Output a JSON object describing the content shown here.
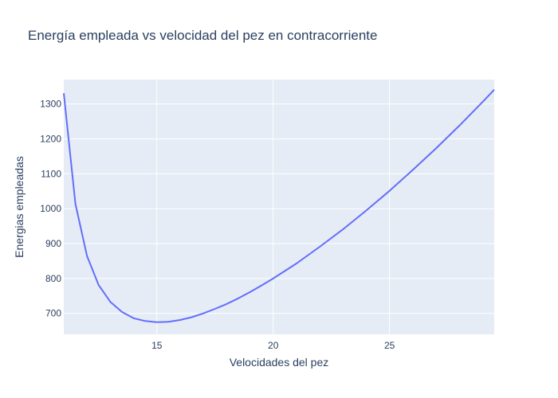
{
  "chart_data": {
    "type": "line",
    "title": "Energía empleada vs velocidad del pez en contracorriente",
    "xlabel": "Velocidades del pez",
    "ylabel": "Energias empleadas",
    "xlim": [
      11,
      29.5
    ],
    "ylim": [
      640,
      1370
    ],
    "x_ticks": [
      15,
      20,
      25
    ],
    "y_ticks": [
      700,
      800,
      900,
      1000,
      1100,
      1200,
      1300
    ],
    "grid": true,
    "colors": {
      "line": "#636efa",
      "plot_bg": "#e5ecf6",
      "text": "#2a3f5f"
    },
    "series": [
      {
        "x": [
          11,
          11.5,
          12,
          12.5,
          13,
          13.5,
          14,
          14.5,
          15,
          15.5,
          16,
          16.5,
          17,
          17.5,
          18,
          18.5,
          19,
          19.5,
          20,
          21,
          22,
          23,
          24,
          25,
          26,
          27,
          28,
          29,
          29.5
        ],
        "y": [
          1331,
          1014,
          864,
          781,
          733,
          704,
          686,
          678,
          675,
          676,
          681,
          689,
          700,
          713,
          727,
          743,
          761,
          780,
          800,
          843,
          891,
          941,
          995,
          1051,
          1111,
          1173,
          1238,
          1306,
          1341
        ]
      }
    ]
  }
}
